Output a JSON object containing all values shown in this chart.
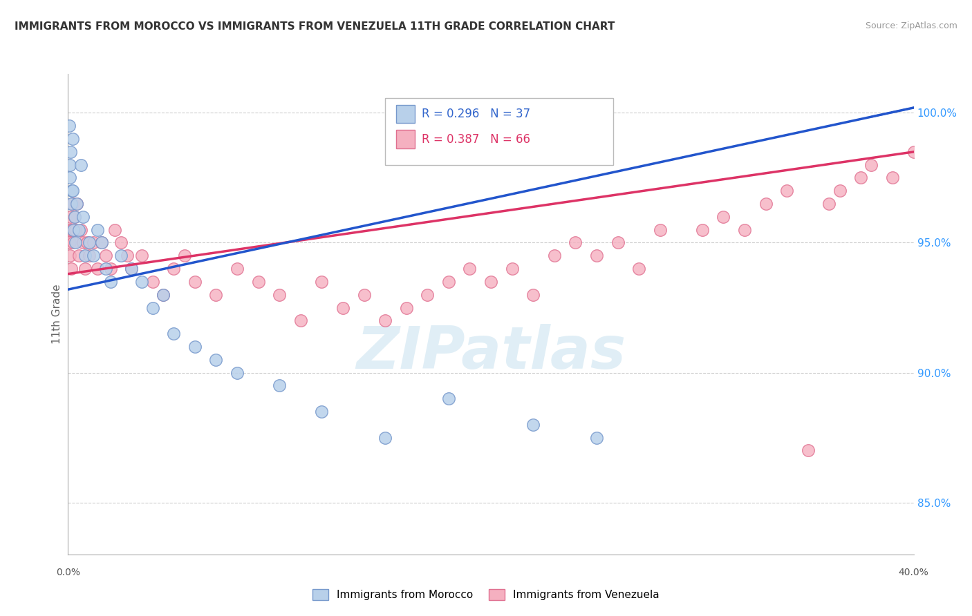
{
  "title": "IMMIGRANTS FROM MOROCCO VS IMMIGRANTS FROM VENEZUELA 11TH GRADE CORRELATION CHART",
  "source": "Source: ZipAtlas.com",
  "ylabel": "11th Grade",
  "ylabel_tick_vals": [
    85.0,
    90.0,
    95.0,
    100.0
  ],
  "xmin": 0.0,
  "xmax": 40.0,
  "ymin": 83.0,
  "ymax": 101.5,
  "morocco_color": "#b8d0ea",
  "venezuela_color": "#f5b0c0",
  "morocco_edge": "#7799cc",
  "venezuela_edge": "#e07090",
  "trend_morocco_color": "#2255cc",
  "trend_venezuela_color": "#dd3366",
  "R_morocco": 0.296,
  "N_morocco": 37,
  "R_venezuela": 0.387,
  "N_venezuela": 66,
  "legend_label_morocco": "Immigrants from Morocco",
  "legend_label_venezuela": "Immigrants from Venezuela",
  "morocco_x": [
    0.05,
    0.08,
    0.1,
    0.12,
    0.15,
    0.18,
    0.2,
    0.22,
    0.25,
    0.3,
    0.35,
    0.4,
    0.5,
    0.6,
    0.7,
    0.8,
    1.0,
    1.2,
    1.4,
    1.6,
    1.8,
    2.0,
    2.5,
    3.0,
    3.5,
    4.0,
    4.5,
    5.0,
    6.0,
    7.0,
    8.0,
    10.0,
    12.0,
    15.0,
    18.0,
    22.0,
    25.0
  ],
  "morocco_y": [
    99.5,
    98.0,
    97.5,
    98.5,
    96.5,
    97.0,
    99.0,
    97.0,
    95.5,
    96.0,
    95.0,
    96.5,
    95.5,
    98.0,
    96.0,
    94.5,
    95.0,
    94.5,
    95.5,
    95.0,
    94.0,
    93.5,
    94.5,
    94.0,
    93.5,
    92.5,
    93.0,
    91.5,
    91.0,
    90.5,
    90.0,
    89.5,
    88.5,
    87.5,
    89.0,
    88.0,
    87.5
  ],
  "venezuela_x": [
    0.05,
    0.08,
    0.1,
    0.12,
    0.15,
    0.18,
    0.2,
    0.25,
    0.3,
    0.35,
    0.4,
    0.5,
    0.6,
    0.7,
    0.8,
    0.9,
    1.0,
    1.2,
    1.4,
    1.6,
    1.8,
    2.0,
    2.2,
    2.5,
    2.8,
    3.0,
    3.5,
    4.0,
    4.5,
    5.0,
    5.5,
    6.0,
    7.0,
    8.0,
    9.0,
    10.0,
    11.0,
    12.0,
    13.0,
    14.0,
    15.0,
    16.0,
    17.0,
    18.0,
    19.0,
    20.0,
    21.0,
    22.0,
    23.0,
    24.0,
    25.0,
    26.0,
    27.0,
    28.0,
    30.0,
    31.0,
    32.0,
    33.0,
    34.0,
    35.0,
    36.0,
    38.0,
    39.0,
    40.0,
    36.5,
    37.5
  ],
  "venezuela_y": [
    95.5,
    95.0,
    94.5,
    96.0,
    94.0,
    95.5,
    96.5,
    95.0,
    96.0,
    95.5,
    96.5,
    94.5,
    95.5,
    95.0,
    94.0,
    95.0,
    94.5,
    95.0,
    94.0,
    95.0,
    94.5,
    94.0,
    95.5,
    95.0,
    94.5,
    94.0,
    94.5,
    93.5,
    93.0,
    94.0,
    94.5,
    93.5,
    93.0,
    94.0,
    93.5,
    93.0,
    92.0,
    93.5,
    92.5,
    93.0,
    92.0,
    92.5,
    93.0,
    93.5,
    94.0,
    93.5,
    94.0,
    93.0,
    94.5,
    95.0,
    94.5,
    95.0,
    94.0,
    95.5,
    95.5,
    96.0,
    95.5,
    96.5,
    97.0,
    87.0,
    96.5,
    98.0,
    97.5,
    98.5,
    97.0,
    97.5
  ],
  "morocco_trend_x0": 0.0,
  "morocco_trend_y0": 93.2,
  "morocco_trend_x1": 40.0,
  "morocco_trend_y1": 100.2,
  "venezuela_trend_x0": 0.0,
  "venezuela_trend_y0": 93.8,
  "venezuela_trend_x1": 40.0,
  "venezuela_trend_y1": 98.5,
  "watermark_text": "ZIPatlas",
  "watermark_color": "#cce4f0"
}
